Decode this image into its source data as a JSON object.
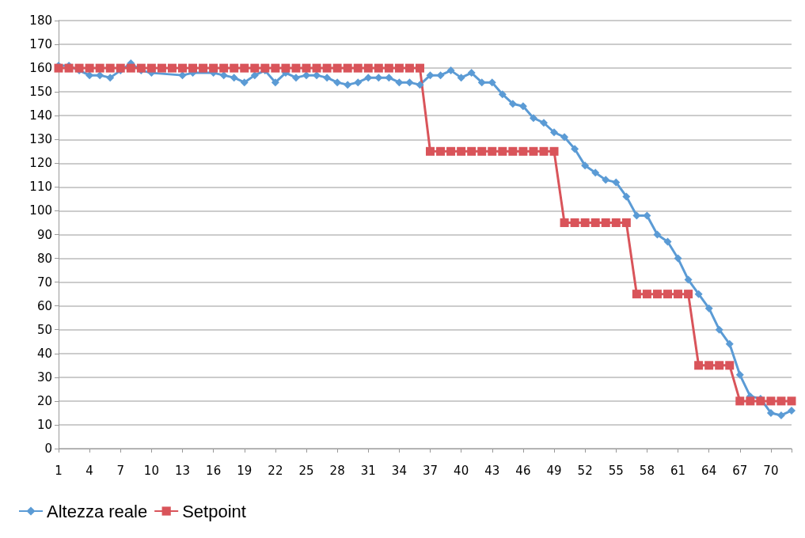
{
  "chart_data": {
    "type": "line",
    "categories": [
      "1",
      null,
      null,
      "4",
      null,
      null,
      "7",
      null,
      null,
      "10",
      null,
      null,
      "13",
      null,
      null,
      "16",
      null,
      null,
      "19",
      null,
      null,
      "22",
      null,
      null,
      "25",
      null,
      null,
      "28",
      null,
      null,
      "31",
      null,
      null,
      "34",
      null,
      null,
      "37",
      null,
      null,
      "40",
      null,
      null,
      "43",
      null,
      null,
      "46",
      null,
      null,
      "49",
      null,
      null,
      "52",
      null,
      null,
      "55",
      null,
      null,
      "58",
      null,
      null,
      "61",
      null,
      null,
      "64",
      null,
      null,
      "67",
      null,
      null,
      "70",
      null,
      null
    ],
    "series": [
      {
        "name": "Altezza reale",
        "color": "#5b9bd5",
        "marker": "diamond",
        "values": [
          161,
          161,
          159,
          157,
          157,
          156,
          159,
          162,
          159,
          158,
          null,
          null,
          157,
          158,
          null,
          158,
          157,
          156,
          154,
          157,
          159,
          154,
          158,
          156,
          157,
          157,
          156,
          154,
          153,
          154,
          156,
          156,
          156,
          154,
          154,
          153,
          157,
          157,
          159,
          156,
          158,
          154,
          154,
          149,
          145,
          144,
          139,
          137,
          133,
          131,
          126,
          119,
          116,
          113,
          112,
          106,
          98,
          98,
          90,
          87,
          80,
          71,
          65,
          59,
          50,
          44,
          31,
          22,
          21,
          15,
          14,
          16
        ]
      },
      {
        "name": "Setpoint",
        "color": "#d9545a",
        "marker": "square",
        "values": [
          160,
          160,
          160,
          160,
          160,
          160,
          160,
          160,
          160,
          160,
          160,
          160,
          160,
          160,
          160,
          160,
          160,
          160,
          160,
          160,
          160,
          160,
          160,
          160,
          160,
          160,
          160,
          160,
          160,
          160,
          160,
          160,
          160,
          160,
          160,
          160,
          125,
          125,
          125,
          125,
          125,
          125,
          125,
          125,
          125,
          125,
          125,
          125,
          125,
          95,
          95,
          95,
          95,
          95,
          95,
          95,
          65,
          65,
          65,
          65,
          65,
          65,
          35,
          35,
          35,
          35,
          20,
          20,
          20,
          20,
          20,
          20
        ]
      }
    ],
    "ylim": [
      0,
      180
    ],
    "yticks": [
      0,
      10,
      20,
      30,
      40,
      50,
      60,
      70,
      80,
      90,
      100,
      110,
      120,
      130,
      140,
      150,
      160,
      170,
      180
    ],
    "grid": "y",
    "legend": "bottom"
  }
}
